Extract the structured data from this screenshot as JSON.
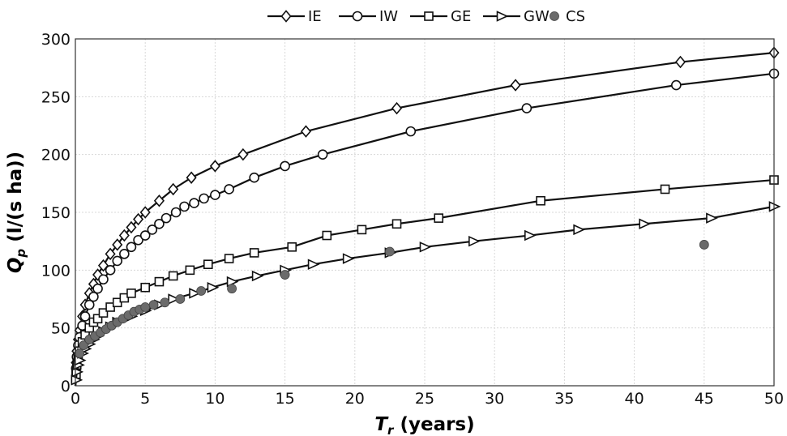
{
  "chart_data": {
    "type": "line",
    "xlabel": "T_r (years)",
    "ylabel": "Q_p (l/(s ha))",
    "xlabel_parts": {
      "main": "T",
      "sub": "r",
      "rest": " (years)"
    },
    "ylabel_parts": {
      "main": "Q",
      "sub": "p",
      "rest": " (l/(s ha))"
    },
    "xlim": [
      0,
      50
    ],
    "ylim": [
      0,
      300
    ],
    "xticks": [
      0,
      5,
      10,
      15,
      20,
      25,
      30,
      35,
      40,
      45,
      50
    ],
    "yticks": [
      0,
      50,
      100,
      150,
      200,
      250,
      300
    ],
    "grid": true,
    "legend_position": "top-center",
    "series": [
      {
        "name": "IE",
        "marker": "diamond",
        "color": "#111111",
        "x": [
          0.05,
          0.1,
          0.2,
          0.3,
          0.5,
          0.7,
          1,
          1.3,
          1.6,
          2,
          2.5,
          3,
          3.5,
          4,
          4.5,
          5,
          6,
          7,
          8.3,
          10,
          12,
          16.5,
          23,
          31.5,
          43.3,
          50
        ],
        "y": [
          20,
          30,
          40,
          48,
          60,
          70,
          80,
          88,
          96,
          104,
          114,
          122,
          130,
          137,
          144,
          150,
          160,
          170,
          180,
          190,
          200,
          220,
          240,
          260,
          280,
          288
        ]
      },
      {
        "name": "IW",
        "marker": "circle",
        "color": "#111111",
        "x": [
          0.05,
          0.1,
          0.2,
          0.3,
          0.5,
          0.7,
          1,
          1.3,
          1.6,
          2,
          2.5,
          3,
          3.5,
          4,
          4.5,
          5,
          5.5,
          6,
          6.5,
          7.2,
          7.8,
          8.5,
          9.2,
          10,
          11,
          12.8,
          15,
          17.7,
          24,
          32.3,
          43,
          50
        ],
        "y": [
          15,
          25,
          35,
          42,
          52,
          60,
          70,
          77,
          84,
          92,
          100,
          108,
          114,
          120,
          126,
          130,
          135,
          140,
          145,
          150,
          155,
          158,
          162,
          165,
          170,
          180,
          190,
          200,
          220,
          240,
          260,
          270
        ]
      },
      {
        "name": "GE",
        "marker": "square",
        "color": "#111111",
        "x": [
          0.05,
          0.1,
          0.2,
          0.3,
          0.5,
          0.7,
          1,
          1.3,
          1.6,
          2,
          2.5,
          3,
          3.5,
          4,
          5,
          6,
          7,
          8.2,
          9.5,
          11,
          12.8,
          15.5,
          18,
          20.5,
          23,
          26,
          33.3,
          42.2,
          50
        ],
        "y": [
          10,
          18,
          25,
          30,
          38,
          44,
          50,
          55,
          58,
          63,
          68,
          72,
          76,
          80,
          85,
          90,
          95,
          100,
          105,
          110,
          115,
          120,
          130,
          135,
          140,
          145,
          160,
          170,
          178
        ]
      },
      {
        "name": "GW",
        "marker": "triangle-right",
        "color": "#111111",
        "x": [
          0.05,
          0.1,
          0.2,
          0.3,
          0.5,
          0.7,
          1,
          1.3,
          1.6,
          2,
          2.5,
          3,
          4,
          5,
          6,
          7,
          8.5,
          9.8,
          11.2,
          13,
          15,
          17,
          19.5,
          22.5,
          25,
          28.5,
          32.5,
          36,
          40.7,
          45.5,
          50
        ],
        "y": [
          5,
          12,
          18,
          22,
          28,
          32,
          36,
          40,
          43,
          47,
          51,
          55,
          60,
          65,
          70,
          75,
          80,
          85,
          90,
          95,
          100,
          105,
          110,
          115,
          120,
          125,
          130,
          135,
          140,
          145,
          155
        ]
      },
      {
        "name": "CS",
        "marker": "filled-circle",
        "color": "#6b6b6b",
        "line": false,
        "x": [
          0.3,
          0.6,
          1.0,
          1.4,
          1.8,
          2.2,
          2.6,
          3.0,
          3.4,
          3.8,
          4.2,
          4.6,
          5.0,
          5.6,
          6.4,
          7.5,
          9.0,
          11.2,
          15.0,
          22.5,
          45.0
        ],
        "y": [
          28,
          35,
          40,
          43,
          46,
          49,
          52,
          55,
          58,
          61,
          64,
          66,
          68,
          70,
          72,
          75,
          82,
          84,
          96,
          116,
          122
        ]
      }
    ]
  }
}
